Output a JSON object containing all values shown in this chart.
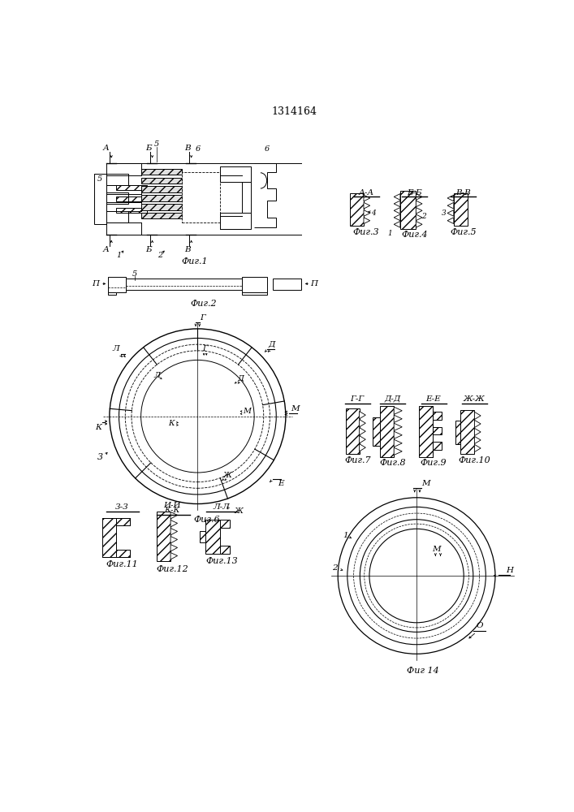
{
  "title": "1314164",
  "bg_color": "#ffffff",
  "fig_labels": {
    "fig1": "Фиг.1",
    "fig2": "Фиг.2",
    "fig3": "Фиг.3",
    "fig4": "Фиг.4",
    "fig5": "Фиг.5",
    "fig6": "Фиг.6",
    "fig7": "Фиг.7",
    "fig8": "Фиг.8",
    "fig9": "Фиг.9",
    "fig10": "Фиг.10",
    "fig11": "Фиг.11",
    "fig12": "Фиг.12",
    "fig13": "Фиг.13",
    "fig14": "Фиг 14"
  }
}
